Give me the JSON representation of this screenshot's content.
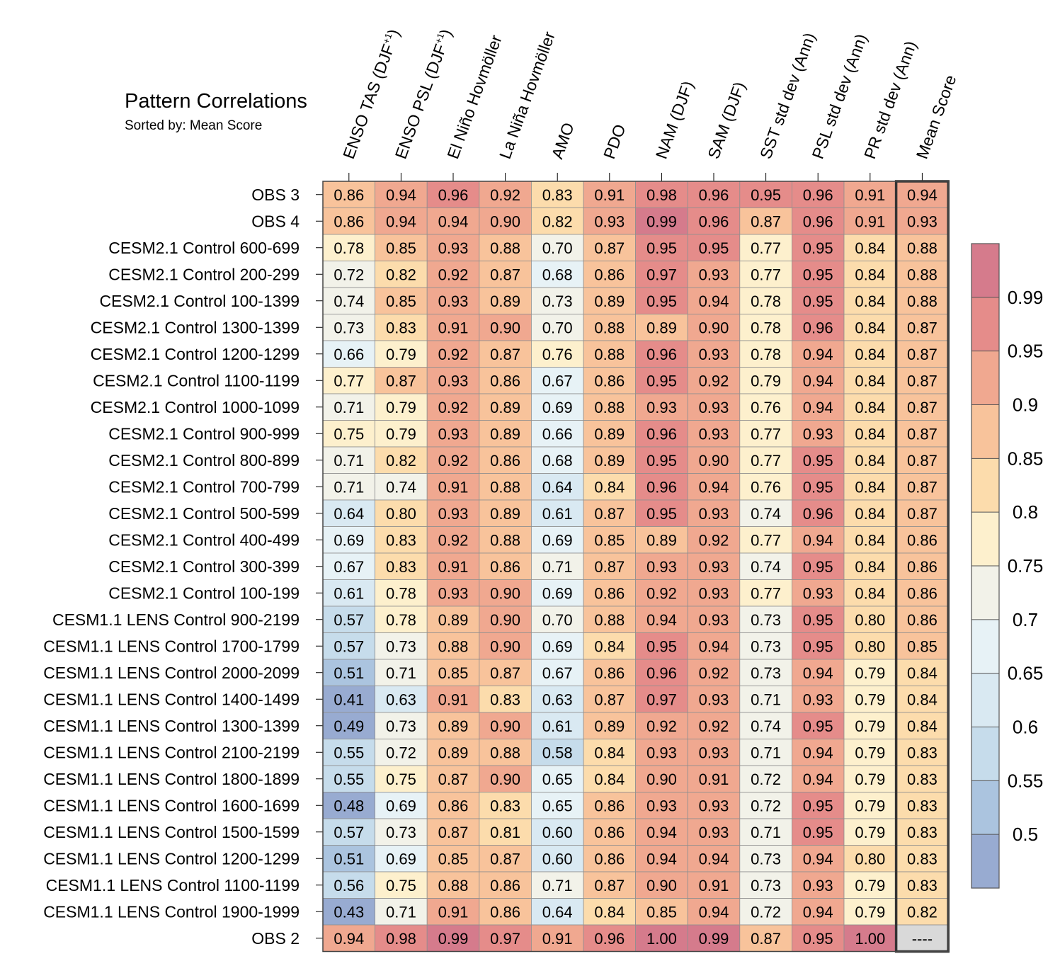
{
  "title": "Pattern Correlations",
  "subtitle": "Sorted by: Mean Score",
  "chart_data": {
    "type": "heatmap",
    "columns": [
      "ENSO TAS (DJF+1)",
      "ENSO PSL (DJF+1)",
      "El Niño Hovmöller",
      "La Niña Hovmöller",
      "AMO",
      "PDO",
      "NAM (DJF)",
      "SAM (DJF)",
      "SST std dev (Ann)",
      "PSL std dev (Ann)",
      "PR std dev (Ann)",
      "Mean Score"
    ],
    "rows": [
      "OBS 3",
      "OBS 4",
      "CESM2.1 Control 600-699",
      "CESM2.1 Control 200-299",
      "CESM2.1 Control 100-1399",
      "CESM2.1 Control 1300-1399",
      "CESM2.1 Control 1200-1299",
      "CESM2.1 Control 1100-1199",
      "CESM2.1 Control 1000-1099",
      "CESM2.1 Control 900-999",
      "CESM2.1 Control 800-899",
      "CESM2.1 Control 700-799",
      "CESM2.1 Control 500-599",
      "CESM2.1 Control 400-499",
      "CESM2.1 Control 300-399",
      "CESM2.1 Control 100-199",
      "CESM1.1 LENS Control 900-2199",
      "CESM1.1 LENS Control 1700-1799",
      "CESM1.1 LENS Control 2000-2099",
      "CESM1.1 LENS Control 1400-1499",
      "CESM1.1 LENS Control 1300-1399",
      "CESM1.1 LENS Control 2100-2199",
      "CESM1.1 LENS Control 1800-1899",
      "CESM1.1 LENS Control 1600-1699",
      "CESM1.1 LENS Control 1500-1599",
      "CESM1.1 LENS Control 1200-1299",
      "CESM1.1 LENS Control 1100-1199",
      "CESM1.1 LENS Control 1900-1999",
      "OBS 2"
    ],
    "values": [
      [
        "0.86",
        "0.94",
        "0.96",
        "0.92",
        "0.83",
        "0.91",
        "0.98",
        "0.96",
        "0.95",
        "0.96",
        "0.91",
        "0.94"
      ],
      [
        "0.86",
        "0.94",
        "0.94",
        "0.90",
        "0.82",
        "0.93",
        "0.99",
        "0.96",
        "0.87",
        "0.96",
        "0.91",
        "0.93"
      ],
      [
        "0.78",
        "0.85",
        "0.93",
        "0.88",
        "0.70",
        "0.87",
        "0.95",
        "0.95",
        "0.77",
        "0.95",
        "0.84",
        "0.88"
      ],
      [
        "0.72",
        "0.82",
        "0.92",
        "0.87",
        "0.68",
        "0.86",
        "0.97",
        "0.93",
        "0.77",
        "0.95",
        "0.84",
        "0.88"
      ],
      [
        "0.74",
        "0.85",
        "0.93",
        "0.89",
        "0.73",
        "0.89",
        "0.95",
        "0.94",
        "0.78",
        "0.95",
        "0.84",
        "0.88"
      ],
      [
        "0.73",
        "0.83",
        "0.91",
        "0.90",
        "0.70",
        "0.88",
        "0.89",
        "0.90",
        "0.78",
        "0.96",
        "0.84",
        "0.87"
      ],
      [
        "0.66",
        "0.79",
        "0.92",
        "0.87",
        "0.76",
        "0.88",
        "0.96",
        "0.93",
        "0.78",
        "0.94",
        "0.84",
        "0.87"
      ],
      [
        "0.77",
        "0.87",
        "0.93",
        "0.86",
        "0.67",
        "0.86",
        "0.95",
        "0.92",
        "0.79",
        "0.94",
        "0.84",
        "0.87"
      ],
      [
        "0.71",
        "0.79",
        "0.92",
        "0.89",
        "0.69",
        "0.88",
        "0.93",
        "0.93",
        "0.76",
        "0.94",
        "0.84",
        "0.87"
      ],
      [
        "0.75",
        "0.79",
        "0.93",
        "0.89",
        "0.66",
        "0.89",
        "0.96",
        "0.93",
        "0.77",
        "0.93",
        "0.84",
        "0.87"
      ],
      [
        "0.71",
        "0.82",
        "0.92",
        "0.86",
        "0.68",
        "0.89",
        "0.95",
        "0.90",
        "0.77",
        "0.95",
        "0.84",
        "0.87"
      ],
      [
        "0.71",
        "0.74",
        "0.91",
        "0.88",
        "0.64",
        "0.84",
        "0.96",
        "0.94",
        "0.76",
        "0.95",
        "0.84",
        "0.87"
      ],
      [
        "0.64",
        "0.80",
        "0.93",
        "0.89",
        "0.61",
        "0.87",
        "0.95",
        "0.93",
        "0.74",
        "0.96",
        "0.84",
        "0.87"
      ],
      [
        "0.69",
        "0.83",
        "0.92",
        "0.88",
        "0.69",
        "0.85",
        "0.89",
        "0.92",
        "0.77",
        "0.94",
        "0.84",
        "0.86"
      ],
      [
        "0.67",
        "0.83",
        "0.91",
        "0.86",
        "0.71",
        "0.87",
        "0.93",
        "0.93",
        "0.74",
        "0.95",
        "0.84",
        "0.86"
      ],
      [
        "0.61",
        "0.78",
        "0.93",
        "0.90",
        "0.69",
        "0.86",
        "0.92",
        "0.93",
        "0.77",
        "0.93",
        "0.84",
        "0.86"
      ],
      [
        "0.57",
        "0.78",
        "0.89",
        "0.90",
        "0.70",
        "0.88",
        "0.94",
        "0.93",
        "0.73",
        "0.95",
        "0.80",
        "0.86"
      ],
      [
        "0.57",
        "0.73",
        "0.88",
        "0.90",
        "0.69",
        "0.84",
        "0.95",
        "0.94",
        "0.73",
        "0.95",
        "0.80",
        "0.85"
      ],
      [
        "0.51",
        "0.71",
        "0.85",
        "0.87",
        "0.67",
        "0.86",
        "0.96",
        "0.92",
        "0.73",
        "0.94",
        "0.79",
        "0.84"
      ],
      [
        "0.41",
        "0.63",
        "0.91",
        "0.83",
        "0.63",
        "0.87",
        "0.97",
        "0.93",
        "0.71",
        "0.93",
        "0.79",
        "0.84"
      ],
      [
        "0.49",
        "0.73",
        "0.89",
        "0.90",
        "0.61",
        "0.89",
        "0.92",
        "0.92",
        "0.74",
        "0.95",
        "0.79",
        "0.84"
      ],
      [
        "0.55",
        "0.72",
        "0.89",
        "0.88",
        "0.58",
        "0.84",
        "0.93",
        "0.93",
        "0.71",
        "0.94",
        "0.79",
        "0.83"
      ],
      [
        "0.55",
        "0.75",
        "0.87",
        "0.90",
        "0.65",
        "0.84",
        "0.90",
        "0.91",
        "0.72",
        "0.94",
        "0.79",
        "0.83"
      ],
      [
        "0.48",
        "0.69",
        "0.86",
        "0.83",
        "0.65",
        "0.86",
        "0.93",
        "0.93",
        "0.72",
        "0.95",
        "0.79",
        "0.83"
      ],
      [
        "0.57",
        "0.73",
        "0.87",
        "0.81",
        "0.60",
        "0.86",
        "0.94",
        "0.93",
        "0.71",
        "0.95",
        "0.79",
        "0.83"
      ],
      [
        "0.51",
        "0.69",
        "0.85",
        "0.87",
        "0.60",
        "0.86",
        "0.94",
        "0.94",
        "0.73",
        "0.94",
        "0.80",
        "0.83"
      ],
      [
        "0.56",
        "0.75",
        "0.88",
        "0.86",
        "0.71",
        "0.87",
        "0.90",
        "0.91",
        "0.73",
        "0.93",
        "0.79",
        "0.83"
      ],
      [
        "0.43",
        "0.71",
        "0.91",
        "0.86",
        "0.64",
        "0.84",
        "0.85",
        "0.94",
        "0.72",
        "0.94",
        "0.79",
        "0.82"
      ],
      [
        "0.94",
        "0.98",
        "0.99",
        "0.97",
        "0.91",
        "0.96",
        "1.00",
        "0.99",
        "0.87",
        "0.95",
        "1.00",
        "----"
      ]
    ],
    "missing_cell_color": "#d9d9d9",
    "colorbar": {
      "levels": [
        "0.5",
        "0.55",
        "0.6",
        "0.65",
        "0.7",
        "0.75",
        "0.8",
        "0.85",
        "0.9",
        "0.95",
        "0.99"
      ],
      "colors": [
        "#98abd1",
        "#abc4df",
        "#c6dceb",
        "#d9e9f2",
        "#e7f2f6",
        "#f2f2e9",
        "#fdf0cd",
        "#fcdcac",
        "#f8c39b",
        "#f0a890",
        "#e58c8a",
        "#d57b8c"
      ]
    }
  }
}
